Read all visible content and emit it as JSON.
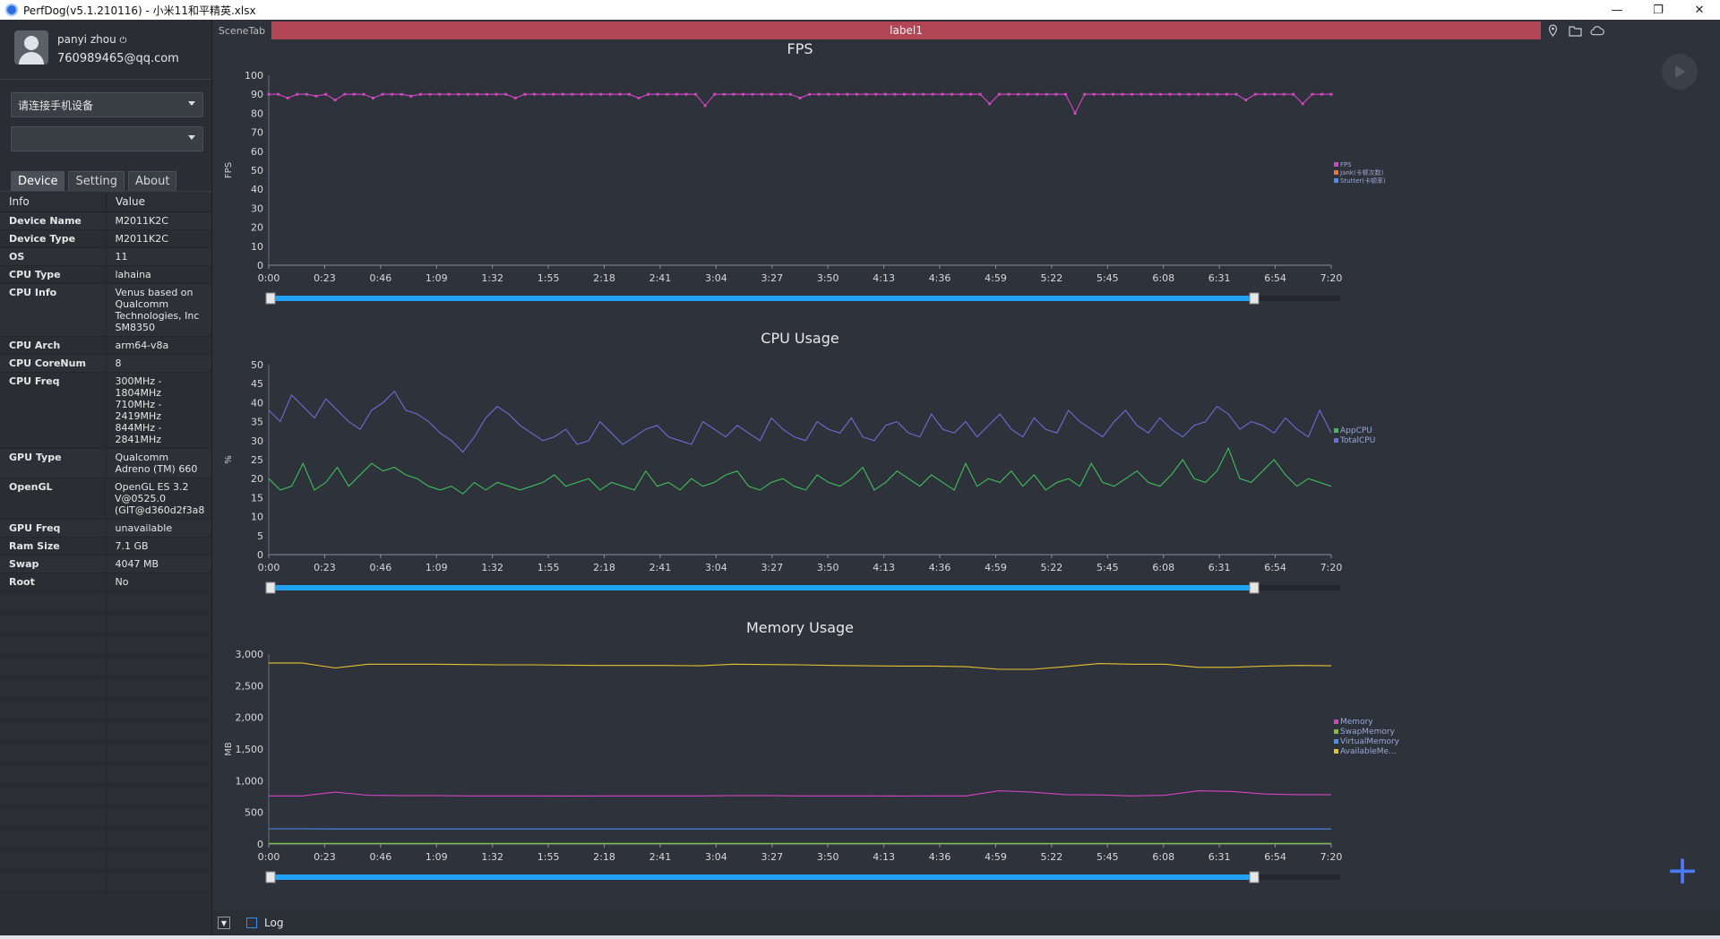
{
  "window": {
    "title": "PerfDog(v5.1.210116) - 小米11和平精英.xlsx"
  },
  "user": {
    "name": "panyi zhou",
    "email": "760989465@qq.com"
  },
  "device_select": {
    "value": "请连接手机设备"
  },
  "app_select": {
    "value": ""
  },
  "tabs": [
    "Device",
    "Setting",
    "About"
  ],
  "info_header": {
    "key": "Info",
    "value": "Value"
  },
  "info_rows": [
    {
      "k": "Device Name",
      "v": "M2011K2C"
    },
    {
      "k": "Device Type",
      "v": "M2011K2C"
    },
    {
      "k": "OS",
      "v": "11"
    },
    {
      "k": "CPU Type",
      "v": "lahaina"
    },
    {
      "k": "CPU Info",
      "v": "Venus based on Qualcomm Technologies, Inc SM8350"
    },
    {
      "k": "CPU Arch",
      "v": "arm64-v8a"
    },
    {
      "k": "CPU CoreNum",
      "v": "8"
    },
    {
      "k": "CPU Freq",
      "v": "300MHz - 1804MHz 710MHz - 2419MHz 844MHz - 2841MHz"
    },
    {
      "k": "GPU Type",
      "v": "Qualcomm Adreno (TM) 660"
    },
    {
      "k": "OpenGL",
      "v": "OpenGL ES 3.2 V@0525.0 (GIT@d360d2f3a8"
    },
    {
      "k": "GPU Freq",
      "v": "unavailable"
    },
    {
      "k": "Ram Size",
      "v": "7.1 GB"
    },
    {
      "k": "Swap",
      "v": "4047 MB"
    },
    {
      "k": "Root",
      "v": "No"
    }
  ],
  "scene_tab": "SceneTab",
  "label_bar": "label1",
  "footer": {
    "log_label": "Log"
  },
  "time_ticks": [
    "0:00",
    "0:23",
    "0:46",
    "1:09",
    "1:32",
    "1:55",
    "2:18",
    "2:41",
    "3:04",
    "3:27",
    "3:50",
    "4:13",
    "4:36",
    "4:59",
    "5:22",
    "5:45",
    "6:08",
    "6:31",
    "6:54",
    "7:20"
  ],
  "chart_data": [
    {
      "type": "line",
      "title": "FPS",
      "ylabel": "FPS",
      "ylim": [
        0,
        100
      ],
      "yticks": [
        "0",
        "10",
        "20",
        "30",
        "40",
        "50",
        "60",
        "70",
        "80",
        "90",
        "100"
      ],
      "series": [
        {
          "name": "FPS",
          "color": "#d146c2",
          "baseline": 90,
          "values": [
            90,
            90,
            88,
            90,
            90,
            89,
            90,
            87,
            90,
            90,
            90,
            88,
            90,
            90,
            90,
            89,
            90,
            90,
            90,
            90,
            90,
            90,
            90,
            90,
            90,
            90,
            88,
            90,
            90,
            90,
            90,
            90,
            90,
            90,
            90,
            90,
            90,
            90,
            90,
            88,
            90,
            90,
            90,
            90,
            90,
            90,
            84,
            90,
            90,
            90,
            90,
            90,
            90,
            90,
            90,
            90,
            88,
            90,
            90,
            90,
            90,
            90,
            90,
            90,
            90,
            90,
            90,
            90,
            90,
            90,
            90,
            90,
            90,
            90,
            90,
            90,
            85,
            90,
            90,
            90,
            90,
            90,
            90,
            90,
            90,
            80,
            90,
            90,
            90,
            90,
            90,
            90,
            90,
            90,
            90,
            90,
            90,
            90,
            90,
            90,
            90,
            90,
            90,
            87,
            90,
            90,
            90,
            90,
            90,
            85,
            90,
            90,
            90
          ]
        },
        {
          "name": "Jank(卡顿次数)",
          "color": "#f0743a",
          "values": [
            0
          ]
        },
        {
          "name": "Stutter(卡顿率)",
          "color": "#4b8df0",
          "values": [
            0
          ]
        }
      ]
    },
    {
      "type": "line",
      "title": "CPU Usage",
      "ylabel": "%",
      "ylim": [
        0,
        50
      ],
      "yticks": [
        "0",
        "5",
        "10",
        "15",
        "20",
        "25",
        "30",
        "35",
        "40",
        "45",
        "50"
      ],
      "series": [
        {
          "name": "AppCPU",
          "color": "#3fbf5a",
          "values": [
            20,
            17,
            18,
            24,
            17,
            19,
            23,
            18,
            21,
            24,
            22,
            23,
            21,
            20,
            18,
            17,
            18,
            16,
            19,
            17,
            19,
            18,
            17,
            18,
            19,
            21,
            18,
            19,
            20,
            17,
            19,
            18,
            17,
            22,
            18,
            19,
            17,
            20,
            18,
            19,
            21,
            22,
            18,
            17,
            19,
            20,
            18,
            17,
            21,
            19,
            18,
            20,
            23,
            17,
            19,
            22,
            20,
            18,
            21,
            19,
            17,
            24,
            18,
            20,
            19,
            22,
            18,
            21,
            17,
            19,
            20,
            18,
            24,
            19,
            18,
            20,
            22,
            19,
            18,
            21,
            25,
            20,
            19,
            22,
            28,
            20,
            19,
            22,
            25,
            21,
            18,
            20,
            19,
            18
          ]
        },
        {
          "name": "TotalCPU",
          "color": "#6b6ed6",
          "values": [
            38,
            35,
            42,
            39,
            36,
            41,
            38,
            35,
            33,
            38,
            40,
            43,
            38,
            37,
            35,
            32,
            30,
            27,
            31,
            36,
            39,
            37,
            34,
            32,
            30,
            31,
            33,
            29,
            30,
            35,
            32,
            29,
            31,
            33,
            34,
            31,
            30,
            29,
            35,
            33,
            31,
            34,
            32,
            30,
            36,
            33,
            31,
            30,
            35,
            33,
            32,
            36,
            31,
            30,
            34,
            35,
            32,
            31,
            37,
            33,
            32,
            35,
            31,
            34,
            37,
            33,
            31,
            36,
            33,
            32,
            38,
            35,
            33,
            31,
            35,
            38,
            34,
            32,
            36,
            33,
            31,
            34,
            35,
            39,
            37,
            33,
            35,
            34,
            32,
            36,
            33,
            31,
            38,
            32
          ]
        }
      ]
    },
    {
      "type": "line",
      "title": "Memory Usage",
      "ylabel": "MB",
      "ylim": [
        0,
        3000
      ],
      "yticks": [
        "0",
        "500",
        "1,000",
        "1,500",
        "2,000",
        "2,500",
        "3,000"
      ],
      "series": [
        {
          "name": "Memory",
          "color": "#d146c2",
          "values": [
            760,
            760,
            820,
            770,
            765,
            765,
            760,
            760,
            760,
            758,
            760,
            760,
            760,
            760,
            765,
            765,
            760,
            760,
            760,
            758,
            760,
            760,
            840,
            820,
            780,
            775,
            760,
            770,
            840,
            830,
            790,
            780,
            780
          ]
        },
        {
          "name": "SwapMemory",
          "color": "#7fc23a",
          "values": [
            10,
            10,
            10,
            10,
            10,
            10,
            10,
            10,
            10,
            10,
            10,
            10,
            10,
            10,
            10,
            10,
            10,
            10,
            10,
            10,
            10,
            10,
            10,
            10,
            10,
            10,
            10,
            10,
            10,
            10,
            10,
            10,
            10
          ]
        },
        {
          "name": "VirtualMemory",
          "color": "#4b8df0",
          "values": [
            240,
            240,
            238,
            238,
            238,
            238,
            238,
            238,
            238,
            238,
            238,
            238,
            238,
            238,
            238,
            238,
            238,
            238,
            238,
            238,
            238,
            238,
            238,
            238,
            238,
            238,
            238,
            238,
            238,
            238,
            238,
            238,
            238
          ]
        },
        {
          "name": "AvailableMe...",
          "color": "#e5c130",
          "values": [
            2860,
            2860,
            2780,
            2840,
            2840,
            2840,
            2835,
            2830,
            2830,
            2825,
            2820,
            2820,
            2820,
            2815,
            2840,
            2835,
            2830,
            2820,
            2815,
            2810,
            2810,
            2800,
            2760,
            2760,
            2800,
            2850,
            2840,
            2840,
            2790,
            2790,
            2810,
            2820,
            2815
          ]
        }
      ]
    }
  ]
}
